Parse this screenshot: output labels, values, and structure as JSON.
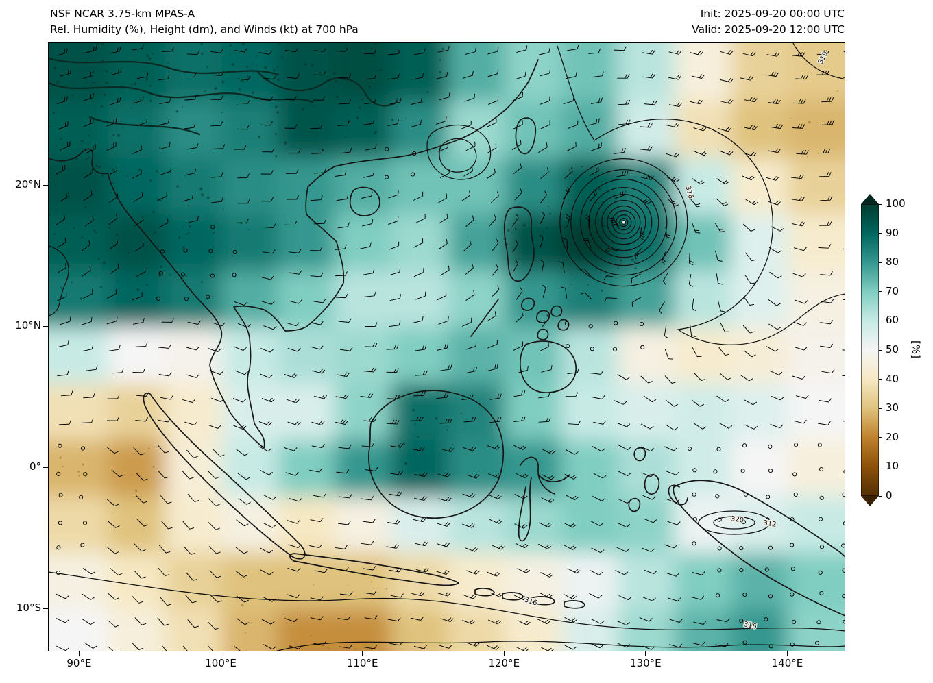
{
  "header": {
    "model": "NSF NCAR 3.75-km MPAS-A",
    "subtitle": "Rel. Humidity (%), Height (dm), and Winds (kt) at 700 hPa",
    "init": "Init: 2025-09-20 00:00 UTC",
    "valid": "Valid: 2025-09-20 12:00 UTC"
  },
  "axes": {
    "lat_ticks": [
      {
        "label": "20°N",
        "deg": 20
      },
      {
        "label": "10°N",
        "deg": 10
      },
      {
        "label": "0°",
        "deg": 0
      },
      {
        "label": "10°S",
        "deg": -10
      }
    ],
    "lon_ticks": [
      {
        "label": "90°E",
        "deg": 90
      },
      {
        "label": "100°E",
        "deg": 100
      },
      {
        "label": "110°E",
        "deg": 110
      },
      {
        "label": "120°E",
        "deg": 120
      },
      {
        "label": "130°E",
        "deg": 130
      },
      {
        "label": "140°E",
        "deg": 140
      }
    ]
  },
  "colorbar": {
    "label": "[%]",
    "min": 0,
    "max": 100,
    "ticks": [
      0,
      10,
      20,
      30,
      40,
      50,
      60,
      70,
      80,
      90,
      100
    ],
    "stops": [
      {
        "v": 0,
        "c": "#543005"
      },
      {
        "v": 10,
        "c": "#8c510a"
      },
      {
        "v": 20,
        "c": "#bf812d"
      },
      {
        "v": 30,
        "c": "#dfc27d"
      },
      {
        "v": 40,
        "c": "#f6e8c3"
      },
      {
        "v": 50,
        "c": "#f5f5f5"
      },
      {
        "v": 60,
        "c": "#c7eae5"
      },
      {
        "v": 70,
        "c": "#80cdc1"
      },
      {
        "v": 80,
        "c": "#35978f"
      },
      {
        "v": 90,
        "c": "#01665e"
      },
      {
        "v": 100,
        "c": "#003c30"
      }
    ]
  },
  "chart_data": {
    "type": "heatmap",
    "field": "relative humidity at 700 hPa",
    "units": "%",
    "overlays": [
      "geopotential height contours (dm)",
      "wind barbs (kt)"
    ],
    "value_range": [
      0,
      100
    ],
    "grid": {
      "lons": [
        90,
        94,
        98,
        102,
        106,
        110,
        114,
        118,
        122,
        126,
        130,
        134,
        138,
        142
      ],
      "lats": [
        28,
        24,
        20,
        16,
        12,
        8,
        4,
        0,
        -4,
        -8,
        -12
      ],
      "values": [
        [
          95,
          92,
          88,
          90,
          95,
          96,
          92,
          76,
          68,
          72,
          62,
          45,
          34,
          32
        ],
        [
          92,
          88,
          82,
          85,
          94,
          92,
          82,
          66,
          72,
          76,
          58,
          38,
          30,
          28
        ],
        [
          95,
          90,
          86,
          82,
          80,
          76,
          72,
          72,
          82,
          92,
          85,
          60,
          42,
          34
        ],
        [
          92,
          95,
          90,
          86,
          80,
          70,
          66,
          78,
          95,
          100,
          88,
          72,
          55,
          42
        ],
        [
          86,
          90,
          86,
          76,
          70,
          62,
          62,
          68,
          80,
          85,
          78,
          62,
          55,
          46
        ],
        [
          60,
          50,
          48,
          60,
          64,
          66,
          70,
          75,
          72,
          62,
          46,
          42,
          44,
          48
        ],
        [
          38,
          34,
          42,
          56,
          56,
          68,
          88,
          84,
          70,
          60,
          56,
          58,
          55,
          50
        ],
        [
          28,
          24,
          44,
          60,
          70,
          80,
          90,
          82,
          80,
          70,
          64,
          58,
          50,
          45
        ],
        [
          36,
          30,
          42,
          46,
          40,
          46,
          56,
          62,
          66,
          70,
          68,
          52,
          56,
          60
        ],
        [
          46,
          40,
          34,
          30,
          30,
          30,
          36,
          42,
          46,
          52,
          62,
          70,
          75,
          70
        ],
        [
          50,
          45,
          38,
          28,
          22,
          22,
          30,
          36,
          42,
          56,
          66,
          75,
          80,
          68
        ]
      ]
    },
    "height_contour_labels": [
      {
        "text": "319",
        "lon": 142.6,
        "lat": 29.0,
        "rot": -62
      },
      {
        "text": "316",
        "lon": 132.9,
        "lat": 19.5,
        "rot": 75
      },
      {
        "text": "316",
        "lon": 121.8,
        "lat": -9.6,
        "rot": 18
      },
      {
        "text": "316",
        "lon": 137.3,
        "lat": -11.3,
        "rot": 12
      },
      {
        "text": "320",
        "lon": 136.4,
        "lat": -3.8,
        "rot": 8
      },
      {
        "text": "312",
        "lon": 138.7,
        "lat": -4.1,
        "rot": 8
      }
    ],
    "features": {
      "tropical_cyclone": {
        "lon": 128.4,
        "lat": 17.4,
        "description": "closed near-circular height contours with saturated (100%) core"
      }
    },
    "winds": {
      "style": "barbs",
      "units": "kt"
    }
  }
}
